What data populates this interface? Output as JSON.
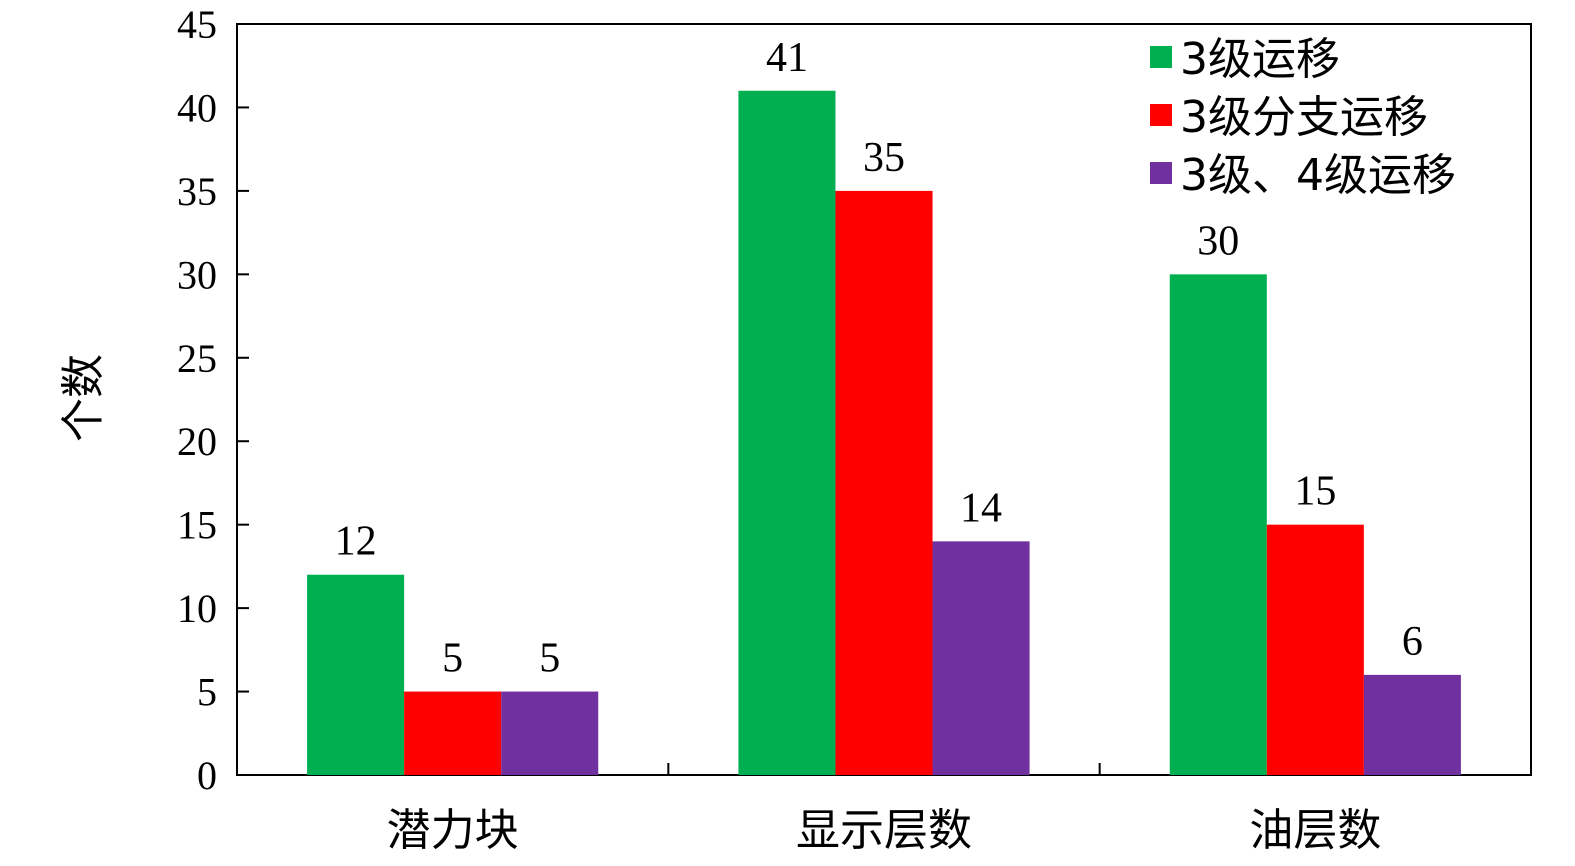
{
  "chart_data": {
    "type": "bar",
    "title": "",
    "xlabel": "",
    "ylabel": "个数",
    "ylim": [
      0,
      45
    ],
    "yticks": [
      0,
      5,
      10,
      15,
      20,
      25,
      30,
      35,
      40,
      45
    ],
    "categories": [
      "潜力块",
      "显示层数",
      "油层数"
    ],
    "series": [
      {
        "name": "3级运移",
        "color": "#00b050",
        "values": [
          12,
          41,
          30
        ]
      },
      {
        "name": "3级分支运移",
        "color": "#ff0000",
        "values": [
          5,
          35,
          15
        ]
      },
      {
        "name": "3级、4级运移",
        "color": "#7030a0",
        "values": [
          5,
          14,
          6
        ]
      }
    ],
    "grid": false,
    "legend": "top-right",
    "data_labels": true
  }
}
